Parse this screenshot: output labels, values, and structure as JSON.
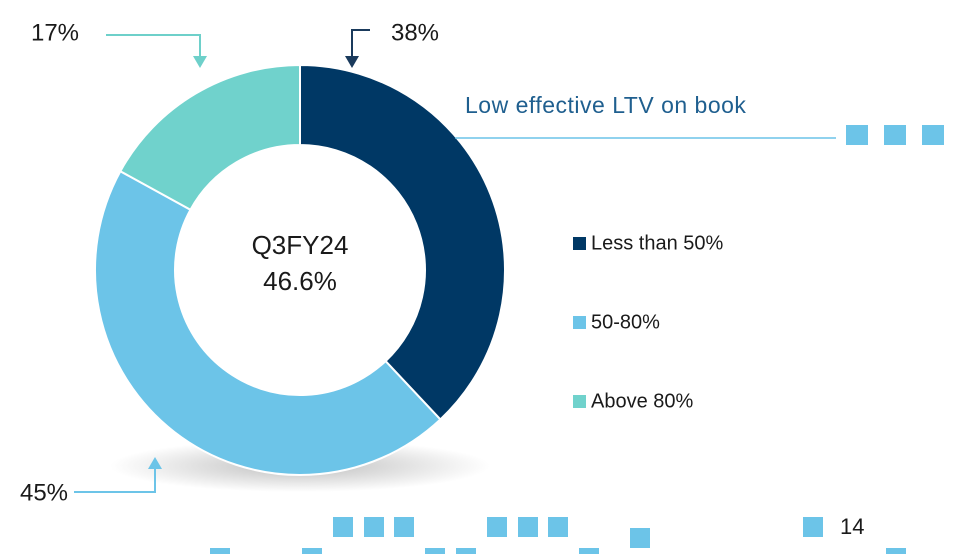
{
  "chart_data": {
    "type": "pie",
    "donut": true,
    "title": "Low effective LTV on book",
    "categories": [
      "Less than 50%",
      "50-80%",
      "Above 80%"
    ],
    "values": [
      38,
      45,
      17
    ],
    "value_labels": [
      "38%",
      "45%",
      "17%"
    ],
    "colors": [
      "#003865",
      "#6cc4e8",
      "#70d2cc"
    ],
    "center_label": [
      "Q3FY24",
      "46.6%"
    ]
  },
  "page_number": "14"
}
